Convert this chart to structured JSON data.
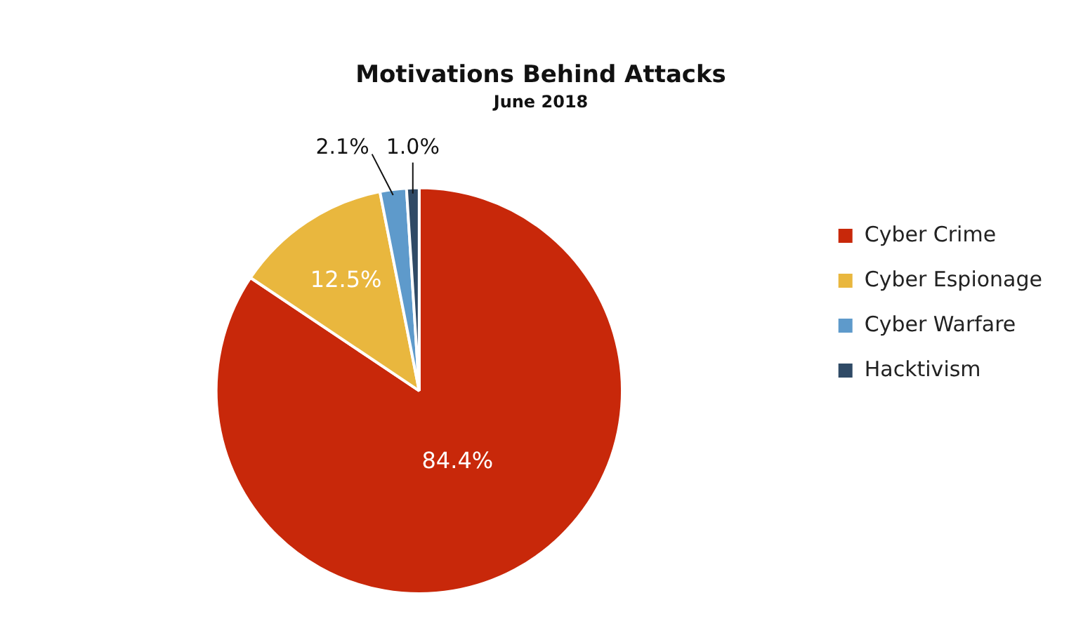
{
  "chart_data": {
    "type": "pie",
    "title": "Motivations Behind Attacks",
    "subtitle": "June 2018",
    "categories": [
      "Cyber Crime",
      "Cyber Espionage",
      "Cyber Warfare",
      "Hacktivism"
    ],
    "values": [
      84.4,
      12.5,
      2.1,
      1.0
    ],
    "colors": [
      "#c8280a",
      "#e9b73e",
      "#5e9acb",
      "#2f4a66"
    ],
    "value_labels": [
      "84.4%",
      "12.5%",
      "2.1%",
      "1.0%"
    ],
    "legend": "right"
  }
}
